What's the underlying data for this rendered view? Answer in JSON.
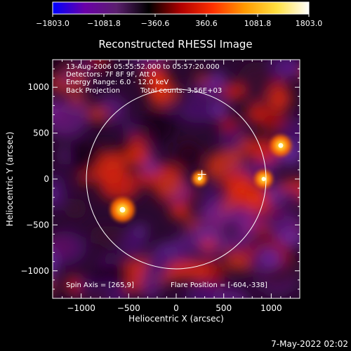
{
  "colorbar": {
    "ticks": [
      "−1803.0",
      "−1081.8",
      "−360.6",
      "360.6",
      "1081.8",
      "1803.0"
    ],
    "range": [
      -1803.0,
      1803.0
    ],
    "colors": [
      "#0000ff",
      "#6a00a8",
      "#5b1f6e",
      "#000000",
      "#b00000",
      "#ff3000",
      "#ff9a00",
      "#ffe040",
      "#ffffff"
    ]
  },
  "chart_data": {
    "type": "heatmap",
    "title": "Reconstructed RHESSI Image",
    "xlabel": "Heliocentric X (arcsec)",
    "ylabel": "Heliocentric Y (arcsec)",
    "xlim": [
      -1300,
      1300
    ],
    "ylim": [
      -1300,
      1300
    ],
    "xticks": [
      -1000,
      -500,
      0,
      500,
      1000
    ],
    "yticks": [
      1000,
      500,
      0,
      -500,
      -1000
    ],
    "xtick_labels": [
      "−1000",
      "−500",
      "0",
      "500",
      "1000"
    ],
    "ytick_labels": [
      "1000",
      "500",
      "0",
      "−500",
      "−1000"
    ],
    "solar_disk_radius": 945,
    "flare_marker": [
      270,
      50
    ],
    "bright_sources": [
      {
        "x": -565,
        "y": -335,
        "value": 1803
      },
      {
        "x": 1100,
        "y": 365,
        "value": 1500
      },
      {
        "x": 920,
        "y": 0,
        "value": 1200
      },
      {
        "x": 245,
        "y": 5,
        "value": 900
      }
    ],
    "annotations": {
      "time_range": "13-Aug-2006 05:55:52.000 to 05:57:20.000",
      "detectors": "Detectors: 7F 8F 9F, Att 0",
      "energy_range": "Energy Range: 6.0 - 12.0 keV",
      "method": "Back Projection",
      "total_counts": "Total counts: 3.56E+03",
      "spin_axis": "Spin Axis = [265,9]",
      "flare_position": "Flare Position = [-604,-338]"
    }
  },
  "footer_date": "7-May-2022 02:02"
}
